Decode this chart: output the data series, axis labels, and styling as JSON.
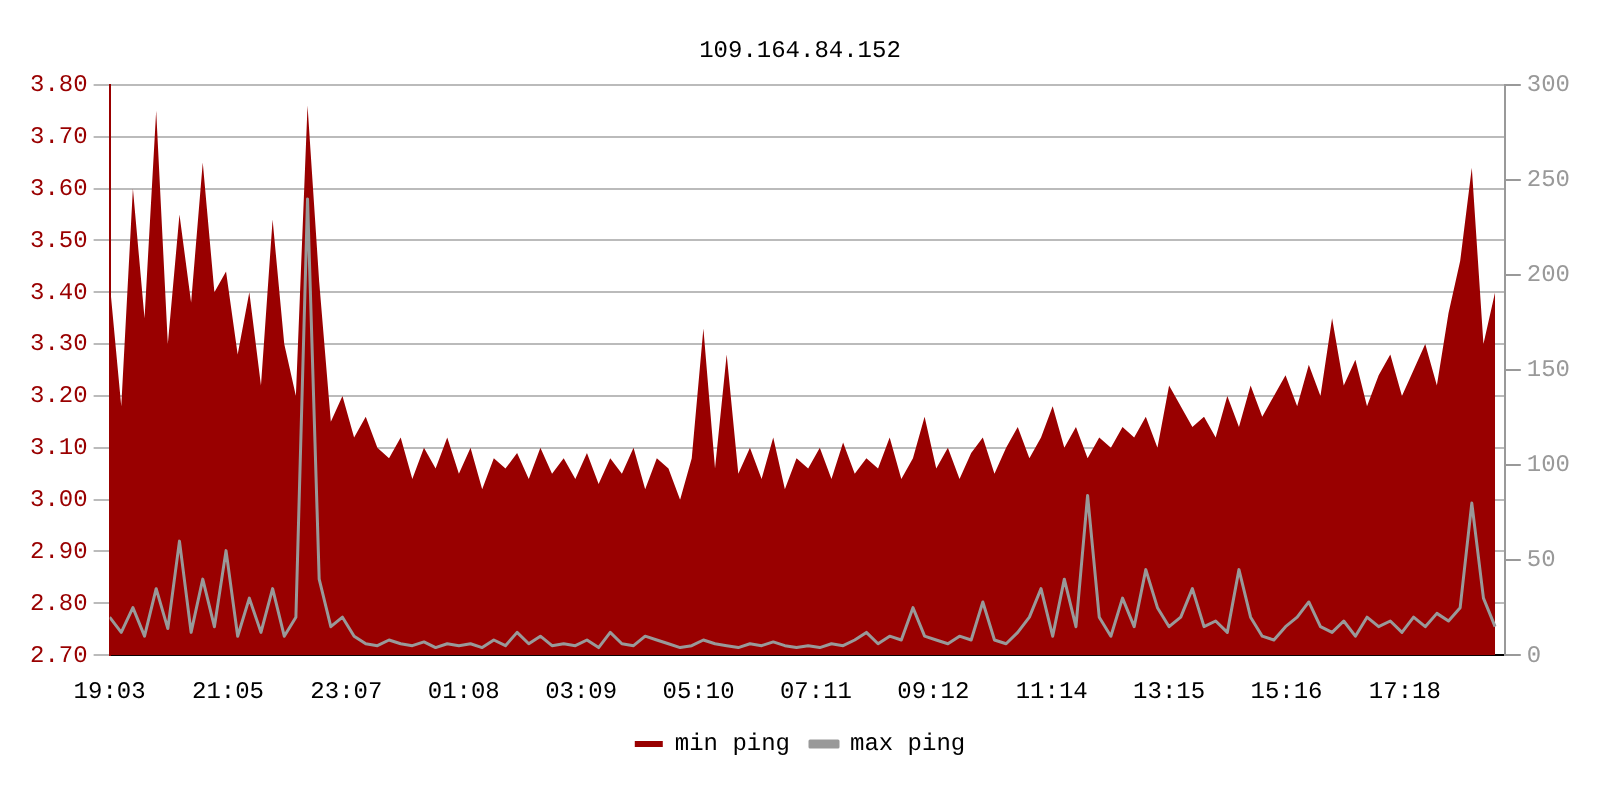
{
  "chart_data": {
    "type": "line",
    "title": "109.164.84.152",
    "x": [
      "--01-01T19:03",
      "--01-01T19:15",
      "--01-01T19:27",
      "--01-01T19:39",
      "--01-01T19:51",
      "--01-01T20:03",
      "--01-01T20:15",
      "--01-01T20:27",
      "--01-01T20:39",
      "--01-01T20:51",
      "--01-01T21:03",
      "--01-01T21:15",
      "--01-01T21:27",
      "--01-01T21:39",
      "--01-01T21:51",
      "--01-01T22:03",
      "--01-01T22:15",
      "--01-01T22:27",
      "--01-01T22:39",
      "--01-01T22:51",
      "--01-01T23:03",
      "--01-01T23:15",
      "--01-01T23:27",
      "--01-01T23:39",
      "--01-01T23:51",
      "--01-02T00:03",
      "--01-02T00:15",
      "--01-02T00:27",
      "--01-02T00:39",
      "--01-02T00:51",
      "--01-02T01:03",
      "--01-02T01:15",
      "--01-02T01:27",
      "--01-02T01:39",
      "--01-02T01:51",
      "--01-02T02:03",
      "--01-02T02:15",
      "--01-02T02:27",
      "--01-02T02:39",
      "--01-02T02:51",
      "--01-02T03:03",
      "--01-02T03:15",
      "--01-02T03:27",
      "--01-02T03:39",
      "--01-02T03:51",
      "--01-02T04:03",
      "--01-02T04:15",
      "--01-02T04:27",
      "--01-02T04:39",
      "--01-02T04:51",
      "--01-02T05:03",
      "--01-02T05:15",
      "--01-02T05:27",
      "--01-02T05:39",
      "--01-02T05:51",
      "--01-02T06:03",
      "--01-02T06:15",
      "--01-02T06:27",
      "--01-02T06:39",
      "--01-02T06:51",
      "--01-02T07:03",
      "--01-02T07:15",
      "--01-02T07:27",
      "--01-02T07:39",
      "--01-02T07:51",
      "--01-02T08:03",
      "--01-02T08:15",
      "--01-02T08:27",
      "--01-02T08:39",
      "--01-02T08:51",
      "--01-02T09:03",
      "--01-02T09:15",
      "--01-02T09:27",
      "--01-02T09:39",
      "--01-02T09:51",
      "--01-02T10:03",
      "--01-02T10:15",
      "--01-02T10:27",
      "--01-02T10:39",
      "--01-02T10:51",
      "--01-02T11:03",
      "--01-02T11:15",
      "--01-02T11:27",
      "--01-02T11:39",
      "--01-02T11:51",
      "--01-02T12:03",
      "--01-02T12:15",
      "--01-02T12:27",
      "--01-02T12:39",
      "--01-02T12:51",
      "--01-02T13:03",
      "--01-02T13:15",
      "--01-02T13:27",
      "--01-02T13:39",
      "--01-02T13:51",
      "--01-02T14:03",
      "--01-02T14:15",
      "--01-02T14:27",
      "--01-02T14:39",
      "--01-02T14:51",
      "--01-02T15:03",
      "--01-02T15:15",
      "--01-02T15:27",
      "--01-02T15:39",
      "--01-02T15:51",
      "--01-02T16:03",
      "--01-02T16:15",
      "--01-02T16:27",
      "--01-02T16:39",
      "--01-02T16:51",
      "--01-02T17:03",
      "--01-02T17:15",
      "--01-02T17:27",
      "--01-02T17:39",
      "--01-02T17:51",
      "--01-02T18:03",
      "--01-02T18:15",
      "--01-02T18:27",
      "--01-02T18:39",
      "--01-02T18:51"
    ],
    "series": [
      {
        "name": "min ping",
        "type": "area",
        "color": "#990000",
        "values": [
          3.42,
          3.18,
          3.6,
          3.35,
          3.75,
          3.3,
          3.55,
          3.38,
          3.65,
          3.4,
          3.44,
          3.28,
          3.4,
          3.22,
          3.54,
          3.3,
          3.2,
          3.76,
          3.42,
          3.15,
          3.2,
          3.12,
          3.16,
          3.1,
          3.08,
          3.12,
          3.04,
          3.1,
          3.06,
          3.12,
          3.05,
          3.1,
          3.02,
          3.08,
          3.06,
          3.09,
          3.04,
          3.1,
          3.05,
          3.08,
          3.04,
          3.09,
          3.03,
          3.08,
          3.05,
          3.1,
          3.02,
          3.08,
          3.06,
          3.0,
          3.08,
          3.33,
          3.06,
          3.28,
          3.05,
          3.1,
          3.04,
          3.12,
          3.02,
          3.08,
          3.06,
          3.1,
          3.04,
          3.11,
          3.05,
          3.08,
          3.06,
          3.12,
          3.04,
          3.08,
          3.16,
          3.06,
          3.1,
          3.04,
          3.09,
          3.12,
          3.05,
          3.1,
          3.14,
          3.08,
          3.12,
          3.18,
          3.1,
          3.14,
          3.08,
          3.12,
          3.1,
          3.14,
          3.12,
          3.16,
          3.1,
          3.22,
          3.18,
          3.14,
          3.16,
          3.12,
          3.2,
          3.14,
          3.22,
          3.16,
          3.2,
          3.24,
          3.18,
          3.26,
          3.2,
          3.35,
          3.22,
          3.27,
          3.18,
          3.24,
          3.28,
          3.2,
          3.25,
          3.3,
          3.22,
          3.36,
          3.46,
          3.64,
          3.3,
          3.4
        ]
      },
      {
        "name": "max ping",
        "type": "line",
        "axis": "y2",
        "color": "#999999",
        "values": [
          20,
          12,
          25,
          10,
          35,
          14,
          60,
          12,
          40,
          15,
          55,
          10,
          30,
          12,
          35,
          10,
          20,
          240,
          40,
          15,
          20,
          10,
          6,
          5,
          8,
          6,
          5,
          7,
          4,
          6,
          5,
          6,
          4,
          8,
          5,
          12,
          6,
          10,
          5,
          6,
          5,
          8,
          4,
          12,
          6,
          5,
          10,
          8,
          6,
          4,
          5,
          8,
          6,
          5,
          4,
          6,
          5,
          7,
          5,
          4,
          5,
          4,
          6,
          5,
          8,
          12,
          6,
          10,
          8,
          25,
          10,
          8,
          6,
          10,
          8,
          28,
          8,
          6,
          12,
          20,
          35,
          10,
          40,
          15,
          84,
          20,
          10,
          30,
          15,
          45,
          25,
          15,
          20,
          35,
          15,
          18,
          12,
          45,
          20,
          10,
          8,
          15,
          20,
          28,
          15,
          12,
          18,
          10,
          20,
          15,
          18,
          12,
          20,
          15,
          22,
          18,
          25,
          80,
          30,
          15
        ]
      }
    ],
    "xlim": [
      "--01-01T19:03",
      "--01-02T19:01"
    ],
    "xticks": [
      {
        "value": "--01-01T19:03",
        "label": "19:03"
      },
      {
        "value": "--01-01T21:05",
        "label": "21:05"
      },
      {
        "value": "--01-01T23:07",
        "label": "23:07"
      },
      {
        "value": "--01-02T01:08",
        "label": "01:08"
      },
      {
        "value": "--01-02T03:09",
        "label": "03:09"
      },
      {
        "value": "--01-02T05:10",
        "label": "05:10"
      },
      {
        "value": "--01-02T07:11",
        "label": "07:11"
      },
      {
        "value": "--01-02T09:12",
        "label": "09:12"
      },
      {
        "value": "--01-02T11:14",
        "label": "11:14"
      },
      {
        "value": "--01-02T13:15",
        "label": "13:15"
      },
      {
        "value": "--01-02T15:16",
        "label": "15:16"
      },
      {
        "value": "--01-02T17:18",
        "label": "17:18"
      }
    ],
    "ylim": [
      2.7,
      3.8
    ],
    "yticks": [
      {
        "value": 2.7,
        "label": "2.70"
      },
      {
        "value": 2.8,
        "label": "2.80"
      },
      {
        "value": 2.9,
        "label": "2.90"
      },
      {
        "value": 3.0,
        "label": "3.00"
      },
      {
        "value": 3.1,
        "label": "3.10"
      },
      {
        "value": 3.2,
        "label": "3.20"
      },
      {
        "value": 3.3,
        "label": "3.30"
      },
      {
        "value": 3.4,
        "label": "3.40"
      },
      {
        "value": 3.5,
        "label": "3.50"
      },
      {
        "value": 3.6,
        "label": "3.60"
      },
      {
        "value": 3.7,
        "label": "3.70"
      },
      {
        "value": 3.8,
        "label": "3.80"
      }
    ],
    "y2lim": [
      0,
      300
    ],
    "y2ticks": [
      0,
      50,
      100,
      150,
      200,
      250,
      300
    ],
    "grid": "y",
    "legend": "bottom"
  }
}
